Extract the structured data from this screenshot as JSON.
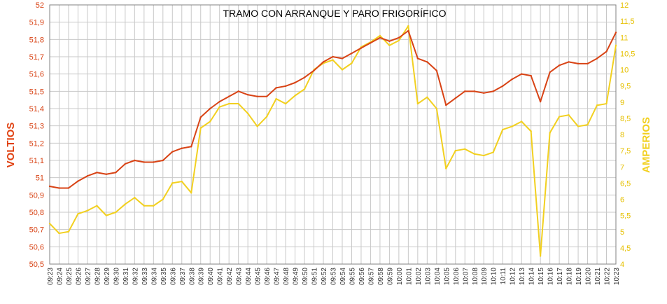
{
  "chart_data": {
    "type": "line",
    "title": "TRAMO CON ARRANQUE Y PARO FRIGORÍFICO",
    "ylabel_left": "VOLTIOS",
    "ylabel_right": "AMPERIOS",
    "ylim_left": [
      50.5,
      52
    ],
    "ylim_right": [
      4,
      12
    ],
    "grid": true,
    "categories": [
      "09:23",
      "09:24",
      "09:25",
      "09:26",
      "09:27",
      "09:28",
      "09:29",
      "09:30",
      "09:31",
      "09:32",
      "09:33",
      "09:34",
      "09:35",
      "09:36",
      "09:37",
      "09:38",
      "09:39",
      "09:40",
      "09:41",
      "09:42",
      "09:43",
      "09:44",
      "09:45",
      "09:46",
      "09:47",
      "09:48",
      "09:49",
      "09:50",
      "09:51",
      "09:52",
      "09:53",
      "09:54",
      "09:55",
      "09:56",
      "09:57",
      "09:58",
      "09:59",
      "10:00",
      "10:01",
      "10:02",
      "10:03",
      "10:04",
      "10:05",
      "10:06",
      "10:07",
      "10:08",
      "10:09",
      "10:10",
      "10:11",
      "10:12",
      "10:13",
      "10:14",
      "10:15",
      "10:16",
      "10:17",
      "10:18",
      "10:19",
      "10:20",
      "10:21",
      "10:22",
      "10:23"
    ],
    "series": [
      {
        "name": "VOLTIOS",
        "axis": "left",
        "color": "#d84315",
        "values": [
          50.95,
          50.94,
          50.94,
          50.98,
          51.01,
          51.03,
          51.02,
          51.03,
          51.08,
          51.1,
          51.09,
          51.09,
          51.1,
          51.15,
          51.17,
          51.18,
          51.35,
          51.4,
          51.44,
          51.47,
          51.5,
          51.48,
          51.47,
          51.47,
          51.52,
          51.53,
          51.55,
          51.58,
          51.62,
          51.67,
          51.7,
          51.69,
          51.72,
          51.75,
          51.78,
          51.81,
          51.79,
          51.81,
          51.85,
          51.69,
          51.67,
          51.62,
          51.42,
          51.46,
          51.5,
          51.5,
          51.49,
          51.5,
          51.53,
          51.57,
          51.6,
          51.59,
          51.44,
          51.61,
          51.65,
          51.67,
          51.66,
          51.66,
          51.69,
          51.73,
          51.84
        ]
      },
      {
        "name": "AMPERIOS",
        "axis": "right",
        "color": "#f2d020",
        "values": [
          5.25,
          4.95,
          5.0,
          5.55,
          5.65,
          5.8,
          5.5,
          5.6,
          5.85,
          6.05,
          5.8,
          5.8,
          6.0,
          6.5,
          6.55,
          6.2,
          8.2,
          8.4,
          8.85,
          8.95,
          8.95,
          8.65,
          8.25,
          8.55,
          9.1,
          8.95,
          9.2,
          9.4,
          10.0,
          10.2,
          10.3,
          10.0,
          10.2,
          10.7,
          10.85,
          11.05,
          10.75,
          10.9,
          11.35,
          8.95,
          9.15,
          8.8,
          6.95,
          7.5,
          7.55,
          7.4,
          7.35,
          7.45,
          8.15,
          8.25,
          8.4,
          8.1,
          4.25,
          8.05,
          8.55,
          8.6,
          8.25,
          8.3,
          8.9,
          8.95,
          10.75
        ]
      }
    ],
    "left_ticks": [
      "50,5",
      "50,6",
      "50,7",
      "50,8",
      "50,9",
      "51",
      "51,1",
      "51,2",
      "51,3",
      "51,4",
      "51,5",
      "51,6",
      "51,7",
      "51,8",
      "51,9",
      "52"
    ],
    "right_ticks": [
      "4",
      "4,5",
      "5",
      "5,5",
      "6",
      "6,5",
      "7",
      "7,5",
      "8",
      "8,5",
      "9",
      "9,5",
      "10",
      "10,5",
      "11",
      "11,5",
      "12"
    ]
  }
}
